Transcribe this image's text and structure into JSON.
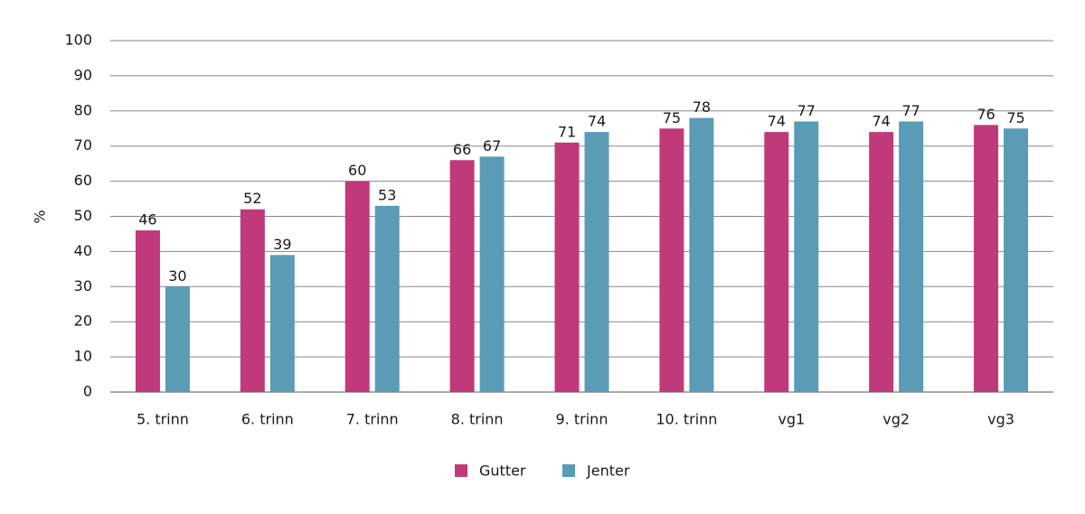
{
  "chart_data": {
    "type": "bar",
    "y_label": "%",
    "categories": [
      "5. trinn",
      "6. trinn",
      "7. trinn",
      "8. trinn",
      "9. trinn",
      "10. trinn",
      "vg1",
      "vg2",
      "vg3"
    ],
    "series": [
      {
        "name": "Gutter",
        "color": "#c0397a",
        "values": [
          46,
          52,
          60,
          66,
          71,
          75,
          74,
          74,
          76
        ]
      },
      {
        "name": "Jenter",
        "color": "#5a9bb5",
        "values": [
          30,
          39,
          53,
          67,
          74,
          78,
          77,
          77,
          75
        ]
      }
    ],
    "ylim": [
      0,
      100
    ],
    "yticks": [
      0,
      10,
      20,
      30,
      40,
      50,
      60,
      70,
      80,
      90,
      100
    ],
    "grid": true,
    "legend": "bottom"
  }
}
